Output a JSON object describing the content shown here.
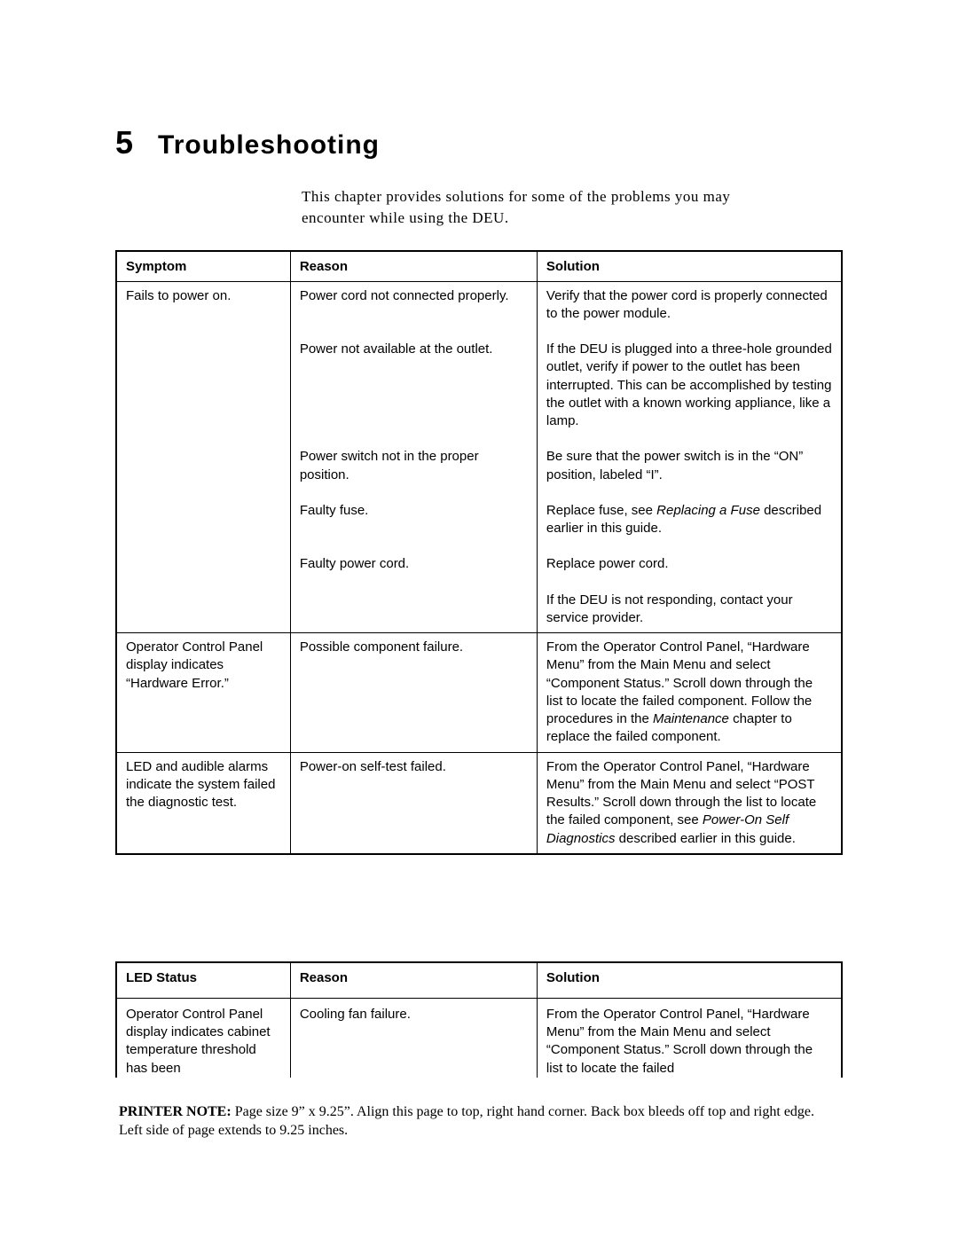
{
  "chapter": {
    "number": "5",
    "title": "Troubleshooting"
  },
  "intro": "This chapter provides solutions for some of the problems you may encounter while using the DEU.",
  "table1": {
    "headers": {
      "c1": "Symptom",
      "c2": "Reason",
      "c3": "Solution"
    },
    "group1": {
      "symptom": "Fails to power on.",
      "r1": {
        "reason": "Power cord not connected properly.",
        "solution": "Verify that the power cord is properly connected to the power module."
      },
      "r2": {
        "reason": "Power not available at the outlet.",
        "solution": "If the DEU is plugged into a three-hole grounded outlet, verify if power to the outlet has been interrupted. This can be accomplished by testing the outlet with a known working appliance, like a lamp."
      },
      "r3": {
        "reason": "Power switch not in the proper position.",
        "solution": "Be sure that the power switch is in the “ON” position, labeled “I”."
      },
      "r4": {
        "reason": "Faulty fuse.",
        "solution_a": "Replace fuse, see ",
        "solution_i": "Replacing a Fuse",
        "solution_b": " described earlier in this guide."
      },
      "r5": {
        "reason": "Faulty power cord.",
        "solution": "Replace power cord."
      },
      "r6": {
        "solution": "If the DEU is not responding, contact your service provider."
      }
    },
    "group2": {
      "symptom": "Operator Control Panel display indicates “Hardware Error.”",
      "reason": "Possible component failure.",
      "solution_a": "From the Operator Control Panel, “Hardware Menu” from the Main Menu and select “Component Status.” Scroll down through the list to locate the failed component. Follow the procedures in the ",
      "solution_i": "Maintenance",
      "solution_b": " chapter to replace the failed component."
    },
    "group3": {
      "symptom": "LED and audible alarms indicate the system failed the diagnostic test.",
      "reason": "Power-on self-test failed.",
      "solution_a": "From the Operator Control Panel, “Hardware Menu” from the Main Menu and select “POST Results.” Scroll down through the list to locate the failed component, see ",
      "solution_i": "Power-On Self Diagnostics",
      "solution_b": " described earlier in this guide."
    }
  },
  "table2": {
    "headers": {
      "c1": "LED Status",
      "c2": "Reason",
      "c3": "Solution"
    },
    "row1": {
      "symptom": "Operator Control Panel display indicates cabinet temperature threshold has been",
      "reason": "Cooling fan failure.",
      "solution": "From the Operator Control Panel, “Hardware Menu” from the Main Menu and select “Component Status.” Scroll down through the list to locate the failed"
    }
  },
  "footer": {
    "label": "PRINTER NOTE:",
    "text": " Page size 9” x 9.25”.  Align this page to top, right hand corner. Back box bleeds off top and right edge. Left side of page extends to 9.25 inches."
  }
}
